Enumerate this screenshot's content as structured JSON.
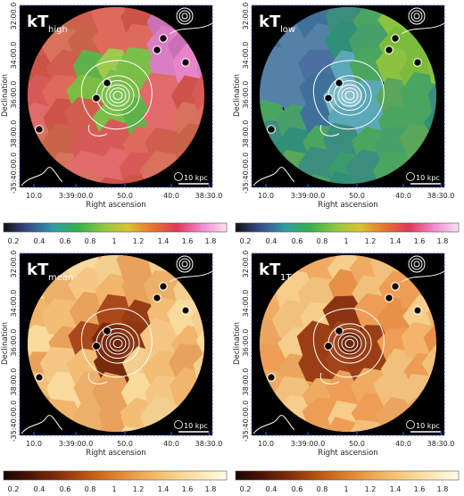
{
  "panels": [
    {
      "id": "kt-high",
      "label_main": "kT",
      "label_sub": "high",
      "scale_bar_label": "10 kpc",
      "colormap": "rainbow",
      "colorbar_ticks": [
        "0.2",
        "0.4",
        "0.6",
        "0.8",
        "1",
        "1.2",
        "1.4",
        "1.6",
        "1.8"
      ],
      "colorbar_colors": [
        "#111111",
        "#3a4c8c",
        "#2f9aa4",
        "#33b24a",
        "#8dc63f",
        "#d9c431",
        "#e8752e",
        "#e3355a",
        "#f08ad0",
        "#fbe0f4"
      ]
    },
    {
      "id": "kt-low",
      "label_main": "kT",
      "label_sub": "low",
      "scale_bar_label": "10 kpc",
      "colormap": "rainbow",
      "colorbar_ticks": [
        "0.2",
        "0.4",
        "0.6",
        "0.8",
        "1",
        "1.2",
        "1.4",
        "1.6",
        "1.8"
      ],
      "colorbar_colors": [
        "#111111",
        "#3a4c8c",
        "#2f9aa4",
        "#33b24a",
        "#8dc63f",
        "#d9c431",
        "#e8752e",
        "#e3355a",
        "#f08ad0",
        "#fbe0f4"
      ]
    },
    {
      "id": "kt-mean",
      "label_main": "kT",
      "label_sub": "mean",
      "scale_bar_label": "10 kpc",
      "colormap": "heat",
      "colorbar_ticks": [
        "0.2",
        "0.4",
        "0.6",
        "0.8",
        "1",
        "1.2",
        "1.4",
        "1.6",
        "1.8"
      ],
      "colorbar_colors": [
        "#1a0502",
        "#4a1304",
        "#7a2a08",
        "#a9480f",
        "#cf6e1e",
        "#e69440",
        "#f3b766",
        "#f8d28c",
        "#fde9b8",
        "#fffce8"
      ]
    },
    {
      "id": "kt-1t",
      "label_main": "kT",
      "label_sub": "1T",
      "scale_bar_label": "10 kpc",
      "colormap": "heat",
      "colorbar_ticks": [
        "0.2",
        "0.4",
        "0.6",
        "0.8",
        "1",
        "1.2",
        "1.4",
        "1.6",
        "1.8"
      ],
      "colorbar_colors": [
        "#1a0502",
        "#4a1304",
        "#7a2a08",
        "#a9480f",
        "#cf6e1e",
        "#e69440",
        "#f3b766",
        "#f8d28c",
        "#fde9b8",
        "#fffce8"
      ]
    }
  ],
  "axes": {
    "xlabel": "Right ascension",
    "ylabel": "Declination",
    "xticks": [
      "10.0",
      "3:39:00.0",
      "50.0",
      "40.0",
      "38:30.0"
    ],
    "yticks": [
      "32:00.0",
      "34:00.0",
      "36:00.0",
      "38:00.0",
      "-35:40:00.0"
    ]
  }
}
